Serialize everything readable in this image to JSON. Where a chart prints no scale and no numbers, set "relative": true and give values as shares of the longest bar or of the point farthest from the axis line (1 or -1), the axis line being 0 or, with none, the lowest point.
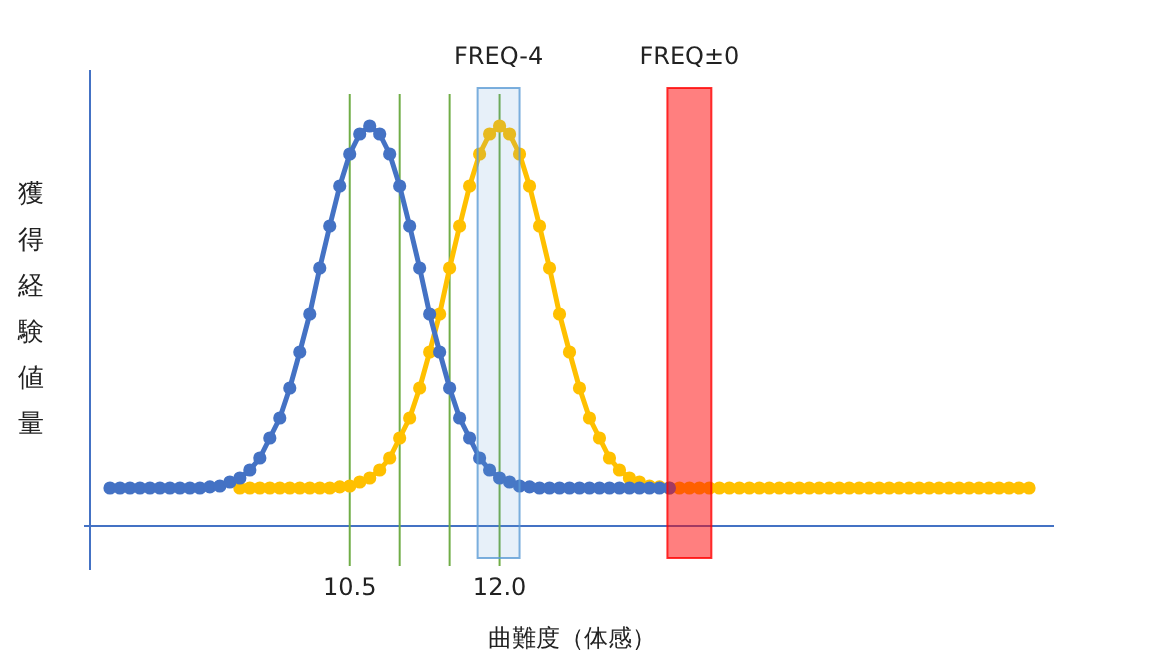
{
  "chart_data": {
    "type": "line",
    "xlabel": "曲難度（体感）",
    "ylabel": "獲得経験値量",
    "relative": true,
    "marker": "circle",
    "line_style": "solid",
    "grid": false,
    "legend": false,
    "xlim": [
      7.9,
      17.55
    ],
    "xticks": [
      {
        "value": 10.5,
        "label": "10.5"
      },
      {
        "value": 12,
        "label": "12.0"
      }
    ],
    "series": [
      {
        "color": "#4472c4",
        "x": [
          8.1,
          8.2,
          8.3,
          8.4,
          8.5,
          8.6,
          8.7,
          8.8,
          8.9,
          9.0,
          9.1,
          9.2,
          9.3,
          9.4,
          9.5,
          9.6,
          9.7,
          9.8,
          9.9,
          10.0,
          10.1,
          10.2,
          10.3,
          10.4,
          10.5,
          10.6,
          10.7,
          10.8,
          10.9,
          11.0,
          11.1,
          11.2,
          11.3,
          11.4,
          11.5,
          11.6,
          11.7,
          11.8,
          11.9,
          12.0,
          12.1,
          12.2,
          12.3,
          12.4,
          12.5,
          12.6,
          12.7,
          12.8,
          12.9,
          13.0,
          13.1,
          13.2,
          13.3,
          13.4,
          13.5,
          13.6,
          13.7
        ],
        "values": [
          0.095,
          0.095,
          0.095,
          0.095,
          0.095,
          0.095,
          0.095,
          0.095,
          0.095,
          0.095,
          0.098,
          0.1,
          0.11,
          0.12,
          0.14,
          0.17,
          0.22,
          0.27,
          0.345,
          0.435,
          0.53,
          0.645,
          0.75,
          0.85,
          0.93,
          0.98,
          1.0,
          0.98,
          0.93,
          0.85,
          0.75,
          0.645,
          0.53,
          0.435,
          0.345,
          0.27,
          0.22,
          0.17,
          0.14,
          0.12,
          0.11,
          0.1,
          0.098,
          0.095,
          0.095,
          0.095,
          0.095,
          0.095,
          0.095,
          0.095,
          0.095,
          0.095,
          0.095,
          0.095,
          0.095,
          0.095,
          0.095
        ]
      },
      {
        "color": "#ffc000",
        "x": [
          9.4,
          9.5,
          9.6,
          9.7,
          9.8,
          9.9,
          10.0,
          10.1,
          10.2,
          10.3,
          10.4,
          10.5,
          10.6,
          10.7,
          10.8,
          10.9,
          11.0,
          11.1,
          11.2,
          11.3,
          11.4,
          11.5,
          11.6,
          11.7,
          11.8,
          11.9,
          12.0,
          12.1,
          12.2,
          12.3,
          12.4,
          12.5,
          12.6,
          12.7,
          12.8,
          12.9,
          13.0,
          13.1,
          13.2,
          13.3,
          13.4,
          13.5,
          13.6,
          13.7,
          13.8,
          13.9,
          14.0,
          14.1,
          14.2,
          14.3,
          14.4,
          14.5,
          14.6,
          14.7,
          14.8,
          14.9,
          15.0,
          15.1,
          15.2,
          15.3,
          15.4,
          15.5,
          15.6,
          15.7,
          15.8,
          15.9,
          16.0,
          16.1,
          16.2,
          16.3,
          16.4,
          16.5,
          16.6,
          16.7,
          16.8,
          16.9,
          17.0,
          17.1,
          17.2,
          17.3
        ],
        "values": [
          0.095,
          0.095,
          0.095,
          0.095,
          0.095,
          0.095,
          0.095,
          0.095,
          0.095,
          0.095,
          0.098,
          0.1,
          0.11,
          0.12,
          0.14,
          0.17,
          0.22,
          0.27,
          0.345,
          0.435,
          0.53,
          0.645,
          0.75,
          0.85,
          0.93,
          0.98,
          1.0,
          0.98,
          0.93,
          0.85,
          0.75,
          0.645,
          0.53,
          0.435,
          0.345,
          0.27,
          0.22,
          0.17,
          0.14,
          0.12,
          0.11,
          0.1,
          0.098,
          0.095,
          0.095,
          0.095,
          0.095,
          0.095,
          0.095,
          0.095,
          0.095,
          0.095,
          0.095,
          0.095,
          0.095,
          0.095,
          0.095,
          0.095,
          0.095,
          0.095,
          0.095,
          0.095,
          0.095,
          0.095,
          0.095,
          0.095,
          0.095,
          0.095,
          0.095,
          0.095,
          0.095,
          0.095,
          0.095,
          0.095,
          0.095,
          0.095,
          0.095,
          0.095,
          0.095,
          0.095
        ]
      }
    ],
    "ref_lines": [
      {
        "axis": "x",
        "value": 10.5,
        "color": "#70ad47"
      },
      {
        "axis": "x",
        "value": 11.0,
        "color": "#70ad47"
      },
      {
        "axis": "x",
        "value": 11.5,
        "color": "#70ad47"
      },
      {
        "axis": "x",
        "value": 12.0,
        "color": "#70ad47"
      }
    ],
    "bands": [
      {
        "axis": "x",
        "from": 11.78,
        "to": 12.2,
        "label": "FREQ-4",
        "color": "#5b9bd5"
      },
      {
        "axis": "x",
        "from": 13.68,
        "to": 14.12,
        "label": "FREQ±0",
        "color": "#ff0000"
      }
    ]
  }
}
